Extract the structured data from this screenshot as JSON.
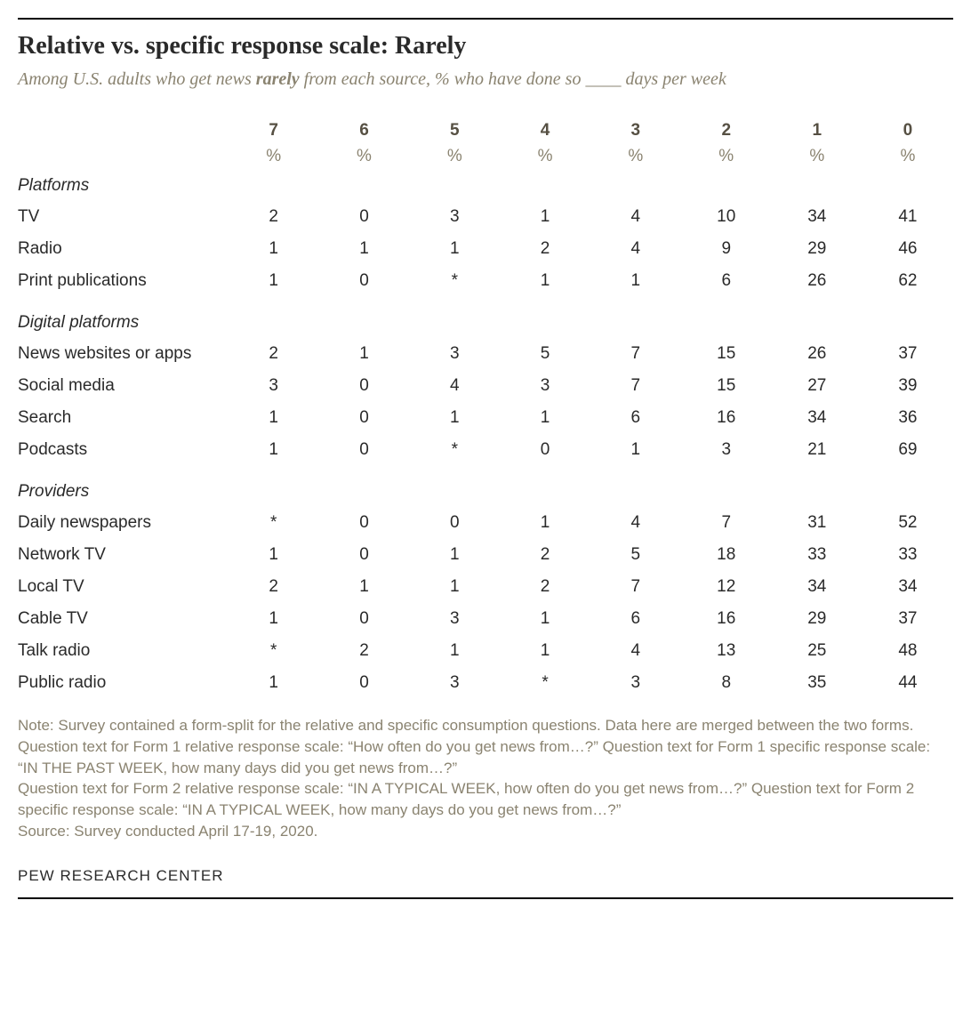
{
  "title": "Relative vs. specific response scale: Rarely",
  "subtitle_pre": "Among U.S. adults who get news ",
  "subtitle_bold": "rarely",
  "subtitle_post": " from each source, % who have done so ____ days per week",
  "columns": [
    "7",
    "6",
    "5",
    "4",
    "3",
    "2",
    "1",
    "0"
  ],
  "pct_label": "%",
  "sections": [
    {
      "name": "Platforms",
      "rows": [
        {
          "label": "TV",
          "vals": [
            "2",
            "0",
            "3",
            "1",
            "4",
            "10",
            "34",
            "41"
          ]
        },
        {
          "label": "Radio",
          "vals": [
            "1",
            "1",
            "1",
            "2",
            "4",
            "9",
            "29",
            "46"
          ]
        },
        {
          "label": "Print publications",
          "vals": [
            "1",
            "0",
            "*",
            "1",
            "1",
            "6",
            "26",
            "62"
          ]
        }
      ]
    },
    {
      "name": "Digital platforms",
      "rows": [
        {
          "label": "News websites or apps",
          "vals": [
            "2",
            "1",
            "3",
            "5",
            "7",
            "15",
            "26",
            "37"
          ]
        },
        {
          "label": "Social media",
          "vals": [
            "3",
            "0",
            "4",
            "3",
            "7",
            "15",
            "27",
            "39"
          ]
        },
        {
          "label": "Search",
          "vals": [
            "1",
            "0",
            "1",
            "1",
            "6",
            "16",
            "34",
            "36"
          ]
        },
        {
          "label": "Podcasts",
          "vals": [
            "1",
            "0",
            "*",
            "0",
            "1",
            "3",
            "21",
            "69"
          ]
        }
      ]
    },
    {
      "name": "Providers",
      "rows": [
        {
          "label": "Daily newspapers",
          "vals": [
            "*",
            "0",
            "0",
            "1",
            "4",
            "7",
            "31",
            "52"
          ]
        },
        {
          "label": "Network TV",
          "vals": [
            "1",
            "0",
            "1",
            "2",
            "5",
            "18",
            "33",
            "33"
          ]
        },
        {
          "label": "Local TV",
          "vals": [
            "2",
            "1",
            "1",
            "2",
            "7",
            "12",
            "34",
            "34"
          ]
        },
        {
          "label": "Cable TV",
          "vals": [
            "1",
            "0",
            "3",
            "1",
            "6",
            "16",
            "29",
            "37"
          ]
        },
        {
          "label": "Talk radio",
          "vals": [
            "*",
            "2",
            "1",
            "1",
            "4",
            "13",
            "25",
            "48"
          ]
        },
        {
          "label": "Public radio",
          "vals": [
            "1",
            "0",
            "3",
            "*",
            "3",
            "8",
            "35",
            "44"
          ]
        }
      ]
    }
  ],
  "note": "Note: Survey contained a form-split for the relative and specific consumption questions. Data here are merged between the two forms. Question text for Form 1 relative response scale: “How often do you get news from…?” Question text for Form 1 specific response scale: “IN THE PAST WEEK, how many days did you get news from…?”",
  "note2": "Question text for Form 2 relative response scale: “IN A TYPICAL WEEK, how often do you get news from…?” Question text for Form 2 specific response scale: “IN A TYPICAL WEEK, how many days do you get news from…?”",
  "source": "Source: Survey conducted April 17-19, 2020.",
  "footer": "PEW RESEARCH CENTER",
  "styling": {
    "title_fontsize": 28,
    "subtitle_fontsize": 20,
    "table_fontsize": 19,
    "note_fontsize": 17,
    "title_color": "#2a2a2a",
    "subtitle_color": "#8a8370",
    "colhead_color": "#565043",
    "note_color": "#8a8370",
    "rule_color": "#000000",
    "background": "#ffffff"
  }
}
